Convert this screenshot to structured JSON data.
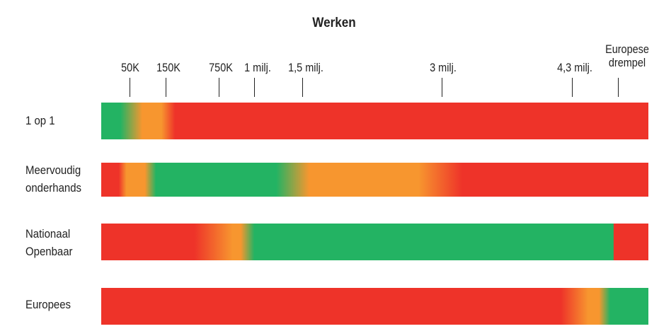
{
  "title": "Werken",
  "colors": {
    "red": "#ee3329",
    "orange": "#f7962f",
    "green": "#23b363"
  },
  "thresholds": [
    "50K",
    "150K",
    "750K",
    "1 milj.",
    "1,5 milj.",
    "3 milj.",
    "4,3 milj.",
    "Europese\ndrempel"
  ],
  "rows": [
    "1 op 1",
    "Meervoudig\nonderhands",
    "Nationaal\nOpenbaar",
    "Europees"
  ]
}
